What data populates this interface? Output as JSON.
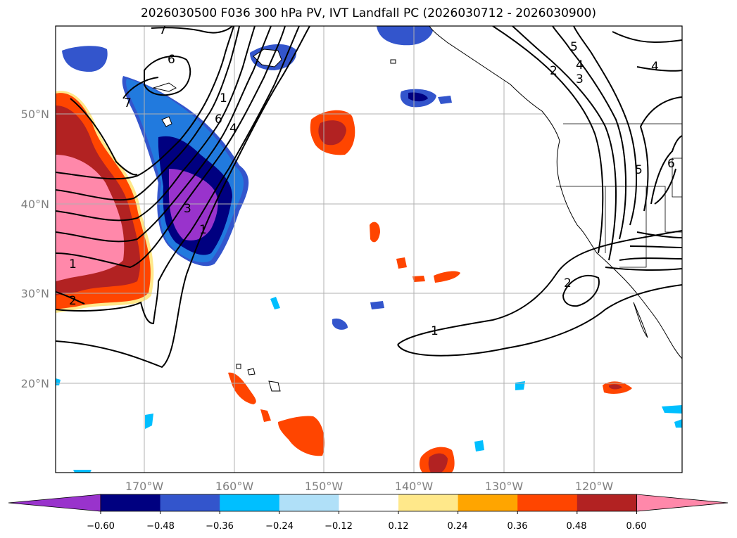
{
  "title": "2026030500 F036 300 hPa PV, IVT Landfall PC (2026030712 - 2026030900)",
  "lat_labels": [
    "50°N",
    "40°N",
    "30°N",
    "20°N"
  ],
  "lon_labels": [
    "170°W",
    "160°W",
    "150°W",
    "140°W",
    "130°W",
    "120°W"
  ],
  "colorbar": {
    "colors": [
      "#9933cc",
      "#000080",
      "#3355cc",
      "#00bfff",
      "#b0e0f8",
      "#ffffff",
      "#ffe88a",
      "#ffa500",
      "#ff4500",
      "#b22222",
      "#ff88aa"
    ],
    "tick_labels": [
      "−0.60",
      "−0.48",
      "−0.36",
      "−0.24",
      "−0.12",
      "0.12",
      "0.24",
      "0.36",
      "0.48",
      "0.60"
    ]
  },
  "contour_labels": [
    "7",
    "6",
    "1",
    "7",
    "6",
    "4",
    "3",
    "1",
    "1",
    "2",
    "5",
    "4",
    "2",
    "3",
    "4",
    "5",
    "6",
    "2",
    "1"
  ]
}
